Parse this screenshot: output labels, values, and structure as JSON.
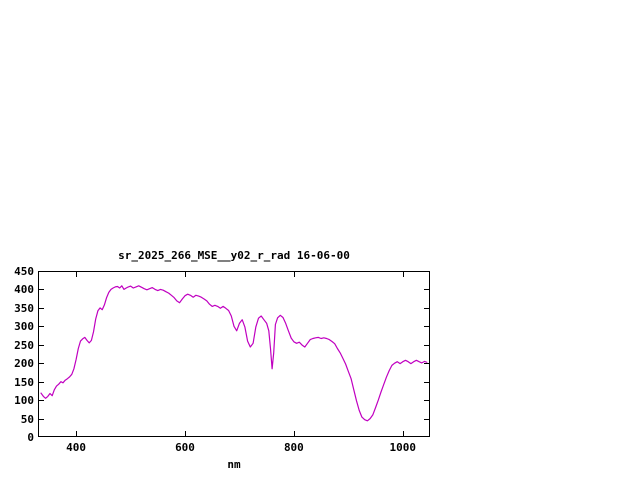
{
  "chart_data": {
    "type": "line",
    "title": "sr_2025_266_MSE__y02_r_rad 16-06-00",
    "xlabel": "nm",
    "ylabel": "",
    "xlim": [
      330,
      1050
    ],
    "ylim": [
      0,
      450
    ],
    "xticks": [
      400,
      600,
      800,
      1000
    ],
    "yticks": [
      0,
      50,
      100,
      150,
      200,
      250,
      300,
      350,
      400,
      450
    ],
    "grid": false,
    "legend": "none",
    "line_color": "#C000C0",
    "border_color": "#000000",
    "background_color": "#ffffff",
    "points": [
      [
        335,
        120
      ],
      [
        340,
        110
      ],
      [
        344,
        105
      ],
      [
        348,
        110
      ],
      [
        352,
        118
      ],
      [
        356,
        112
      ],
      [
        360,
        128
      ],
      [
        364,
        138
      ],
      [
        368,
        143
      ],
      [
        372,
        150
      ],
      [
        376,
        147
      ],
      [
        380,
        154
      ],
      [
        384,
        158
      ],
      [
        388,
        163
      ],
      [
        392,
        170
      ],
      [
        396,
        185
      ],
      [
        400,
        210
      ],
      [
        404,
        240
      ],
      [
        408,
        260
      ],
      [
        412,
        266
      ],
      [
        416,
        270
      ],
      [
        420,
        262
      ],
      [
        424,
        255
      ],
      [
        428,
        262
      ],
      [
        432,
        285
      ],
      [
        436,
        320
      ],
      [
        440,
        342
      ],
      [
        444,
        350
      ],
      [
        448,
        345
      ],
      [
        452,
        358
      ],
      [
        456,
        378
      ],
      [
        460,
        392
      ],
      [
        464,
        400
      ],
      [
        468,
        404
      ],
      [
        472,
        407
      ],
      [
        476,
        408
      ],
      [
        480,
        404
      ],
      [
        484,
        410
      ],
      [
        488,
        400
      ],
      [
        492,
        404
      ],
      [
        496,
        407
      ],
      [
        500,
        409
      ],
      [
        505,
        404
      ],
      [
        510,
        407
      ],
      [
        515,
        410
      ],
      [
        520,
        406
      ],
      [
        525,
        402
      ],
      [
        530,
        399
      ],
      [
        535,
        402
      ],
      [
        540,
        405
      ],
      [
        545,
        400
      ],
      [
        550,
        397
      ],
      [
        555,
        400
      ],
      [
        560,
        398
      ],
      [
        565,
        394
      ],
      [
        570,
        390
      ],
      [
        575,
        384
      ],
      [
        580,
        378
      ],
      [
        585,
        369
      ],
      [
        590,
        364
      ],
      [
        595,
        374
      ],
      [
        600,
        383
      ],
      [
        605,
        387
      ],
      [
        610,
        384
      ],
      [
        615,
        379
      ],
      [
        620,
        384
      ],
      [
        625,
        382
      ],
      [
        630,
        379
      ],
      [
        635,
        374
      ],
      [
        640,
        369
      ],
      [
        645,
        360
      ],
      [
        650,
        354
      ],
      [
        655,
        357
      ],
      [
        660,
        354
      ],
      [
        665,
        349
      ],
      [
        670,
        354
      ],
      [
        675,
        349
      ],
      [
        680,
        343
      ],
      [
        685,
        328
      ],
      [
        690,
        300
      ],
      [
        695,
        288
      ],
      [
        700,
        308
      ],
      [
        705,
        318
      ],
      [
        710,
        298
      ],
      [
        715,
        260
      ],
      [
        720,
        244
      ],
      [
        725,
        254
      ],
      [
        730,
        298
      ],
      [
        735,
        322
      ],
      [
        740,
        328
      ],
      [
        745,
        318
      ],
      [
        750,
        308
      ],
      [
        754,
        288
      ],
      [
        757,
        240
      ],
      [
        760,
        185
      ],
      [
        763,
        228
      ],
      [
        766,
        305
      ],
      [
        770,
        323
      ],
      [
        775,
        330
      ],
      [
        780,
        324
      ],
      [
        785,
        308
      ],
      [
        790,
        288
      ],
      [
        795,
        268
      ],
      [
        800,
        258
      ],
      [
        805,
        254
      ],
      [
        810,
        257
      ],
      [
        815,
        249
      ],
      [
        820,
        244
      ],
      [
        825,
        254
      ],
      [
        830,
        264
      ],
      [
        835,
        267
      ],
      [
        840,
        269
      ],
      [
        845,
        270
      ],
      [
        850,
        267
      ],
      [
        855,
        269
      ],
      [
        860,
        267
      ],
      [
        865,
        264
      ],
      [
        870,
        259
      ],
      [
        875,
        253
      ],
      [
        880,
        240
      ],
      [
        885,
        228
      ],
      [
        890,
        213
      ],
      [
        895,
        198
      ],
      [
        900,
        178
      ],
      [
        905,
        158
      ],
      [
        910,
        128
      ],
      [
        915,
        98
      ],
      [
        920,
        72
      ],
      [
        925,
        54
      ],
      [
        930,
        47
      ],
      [
        935,
        44
      ],
      [
        940,
        50
      ],
      [
        945,
        60
      ],
      [
        950,
        80
      ],
      [
        955,
        100
      ],
      [
        960,
        122
      ],
      [
        965,
        142
      ],
      [
        970,
        162
      ],
      [
        975,
        180
      ],
      [
        980,
        194
      ],
      [
        985,
        200
      ],
      [
        990,
        204
      ],
      [
        995,
        199
      ],
      [
        1000,
        204
      ],
      [
        1005,
        208
      ],
      [
        1010,
        204
      ],
      [
        1015,
        199
      ],
      [
        1020,
        204
      ],
      [
        1025,
        208
      ],
      [
        1030,
        204
      ],
      [
        1035,
        201
      ],
      [
        1040,
        205
      ],
      [
        1045,
        202
      ]
    ]
  }
}
